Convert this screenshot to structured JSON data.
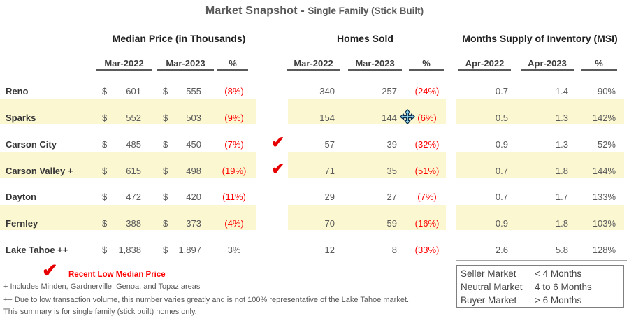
{
  "title": {
    "main": "Market Snapshot -",
    "sub": "Single Family (Stick Built)"
  },
  "sections": {
    "median": "Median Price (in Thousands)",
    "homes": "Homes Sold",
    "msi": "Months Supply of Inventory (MSI)"
  },
  "columns": {
    "median_2022": "Mar-2022",
    "median_2023": "Mar-2023",
    "median_pct": "%",
    "homes_2022": "Mar-2022",
    "homes_2023": "Mar-2023",
    "homes_pct": "%",
    "msi_2022": "Apr-2022",
    "msi_2023": "Apr-2023",
    "msi_pct": "%"
  },
  "currency": "$",
  "rows": [
    {
      "name": "Reno",
      "mp22": "601",
      "mp23": "555",
      "mppct": "(8%)",
      "hs22": "340",
      "hs23": "257",
      "hspct": "(24%)",
      "msi22": "0.7",
      "msi23": "1.4",
      "msipct": "90%",
      "highlight": false,
      "check": false
    },
    {
      "name": "Sparks",
      "mp22": "552",
      "mp23": "503",
      "mppct": "(9%)",
      "hs22": "154",
      "hs23": "144",
      "hspct": "(6%)",
      "msi22": "0.5",
      "msi23": "1.3",
      "msipct": "142%",
      "highlight": true,
      "check": false
    },
    {
      "name": "Carson City",
      "mp22": "485",
      "mp23": "450",
      "mppct": "(7%)",
      "hs22": "57",
      "hs23": "39",
      "hspct": "(32%)",
      "msi22": "0.9",
      "msi23": "1.3",
      "msipct": "52%",
      "highlight": false,
      "check": true
    },
    {
      "name": "Carson Valley +",
      "mp22": "615",
      "mp23": "498",
      "mppct": "(19%)",
      "hs22": "71",
      "hs23": "35",
      "hspct": "(51%)",
      "msi22": "0.7",
      "msi23": "1.8",
      "msipct": "144%",
      "highlight": true,
      "check": true
    },
    {
      "name": "Dayton",
      "mp22": "472",
      "mp23": "420",
      "mppct": "(11%)",
      "hs22": "29",
      "hs23": "27",
      "hspct": "(7%)",
      "msi22": "0.7",
      "msi23": "1.7",
      "msipct": "133%",
      "highlight": false,
      "check": false
    },
    {
      "name": "Fernley",
      "mp22": "388",
      "mp23": "373",
      "mppct": "(4%)",
      "hs22": "70",
      "hs23": "59",
      "hspct": "(16%)",
      "msi22": "0.9",
      "msi23": "1.8",
      "msipct": "103%",
      "highlight": true,
      "check": false
    },
    {
      "name": "Lake Tahoe ++",
      "mp22": "1,838",
      "mp23": "1,897",
      "mppct": "3%",
      "hs22": "12",
      "hs23": "8",
      "hspct": "(33%)",
      "msi22": "2.6",
      "msi23": "5.8",
      "msipct": "128%",
      "highlight": false,
      "check": false
    }
  ],
  "check_legend": "Recent Low Median Price",
  "footnotes": [
    "+ Includes Minden, Gardnerville, Genoa, and Topaz areas",
    "++ Due to low transaction volume, this number varies greatly and is not 100% representative of the Lake Tahoe market.",
    "This summary is for single family (stick built) homes only."
  ],
  "msi_legend": [
    {
      "label": "Seller Market",
      "value": "< 4 Months"
    },
    {
      "label": "Neutral Market",
      "value": "4 to 6 Months"
    },
    {
      "label": "Buyer Market",
      "value": "> 6  Months"
    }
  ],
  "colors": {
    "highlight_yellow": "#FBF7D1",
    "negative_red": "#FE0000",
    "checkmark_red": "#E60000",
    "text_gray": "#595959"
  }
}
